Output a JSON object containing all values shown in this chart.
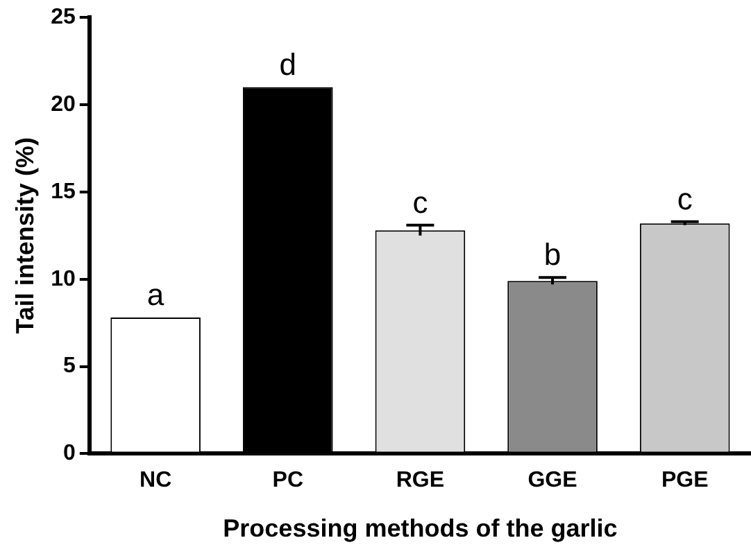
{
  "chart_data": {
    "type": "bar",
    "xlabel": "Processing methods of the garlic",
    "ylabel": "Tail intensity (%)",
    "categories": [
      "NC",
      "PC",
      "RGE",
      "GGE",
      "PGE"
    ],
    "values": [
      7.8,
      21.0,
      12.8,
      9.9,
      13.2
    ],
    "colors": [
      "#ffffff",
      "#000000",
      "#e0e0e0",
      "#8a8a8a",
      "#c8c8c8"
    ],
    "errors": [
      null,
      null,
      0.3,
      0.2,
      0.1
    ],
    "value_labels": [
      "a",
      "d",
      "c",
      "b",
      "c"
    ],
    "ylim": [
      0,
      25
    ],
    "yticks": [
      0,
      5,
      10,
      15,
      20,
      25
    ],
    "grid": false,
    "legend": false
  }
}
